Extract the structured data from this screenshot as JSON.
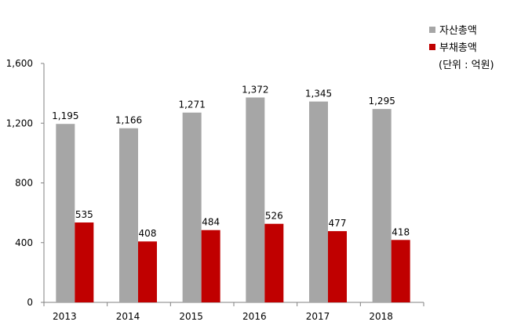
{
  "chart_data": {
    "type": "bar",
    "categories": [
      "2013",
      "2014",
      "2015",
      "2016",
      "2017",
      "2018"
    ],
    "series": [
      {
        "name": "자산총액",
        "color": "#A6A6A6",
        "values": [
          1195,
          1166,
          1271,
          1372,
          1345,
          1295
        ],
        "labels": [
          "1,195",
          "1,166",
          "1,271",
          "1,372",
          "1,345",
          "1,295"
        ]
      },
      {
        "name": "부채총액",
        "color": "#C00000",
        "values": [
          535,
          408,
          484,
          526,
          477,
          418
        ],
        "labels": [
          "535",
          "408",
          "484",
          "526",
          "477",
          "418"
        ]
      }
    ],
    "ylim": [
      0,
      1600
    ],
    "yticks": [
      0,
      400,
      800,
      1200,
      1600
    ],
    "ytick_labels": [
      "0",
      "400",
      "800",
      "1,200",
      "1,600"
    ],
    "grid": false,
    "legend_position": "top-right",
    "unit_note": "(단위 : 억원)"
  }
}
